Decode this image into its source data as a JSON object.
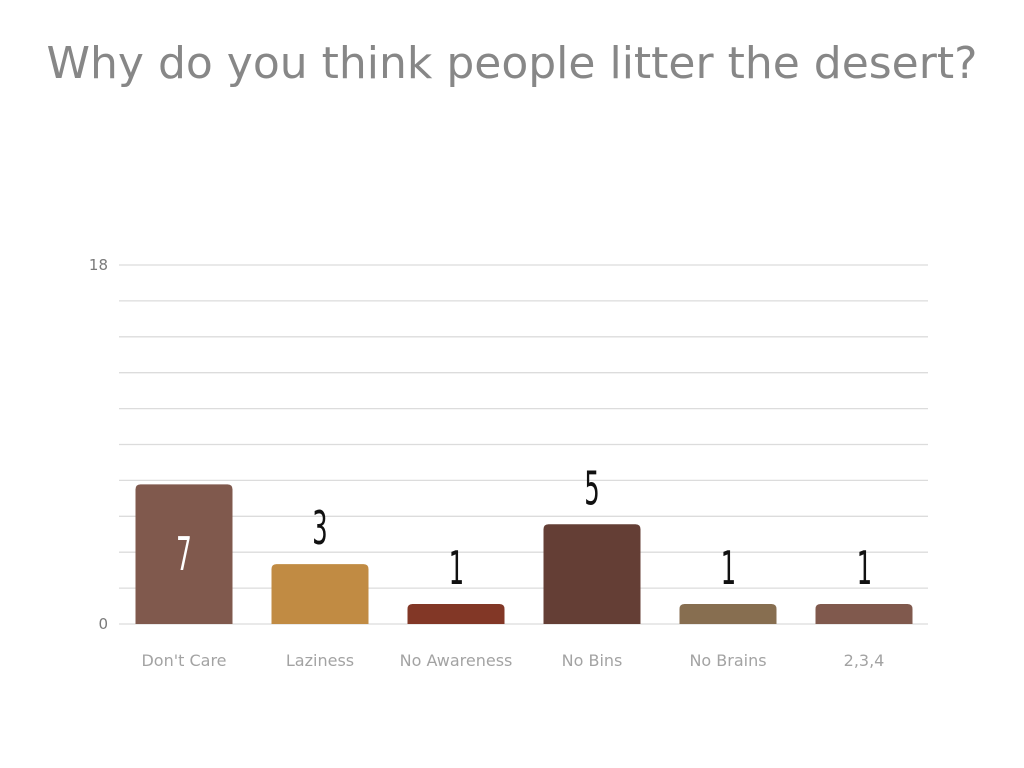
{
  "chart_data": {
    "type": "bar",
    "title": "Why do you think people litter the desert?",
    "categories": [
      "Don't Care",
      "Laziness",
      "No Awareness",
      "No Bins",
      "No Brains",
      "2,3,4"
    ],
    "values": [
      7,
      3,
      1,
      5,
      1,
      1
    ],
    "ylim": [
      0,
      18
    ],
    "y_tick_labels": [
      "0",
      "18"
    ],
    "grid": true,
    "xlabel": "",
    "ylabel": "",
    "colors": [
      "#80594d",
      "#c18b43",
      "#823726",
      "#643e35",
      "#876e50",
      "#80594d"
    ],
    "label_inside_color": "#ffffff",
    "label_outside_color": "#111111"
  }
}
